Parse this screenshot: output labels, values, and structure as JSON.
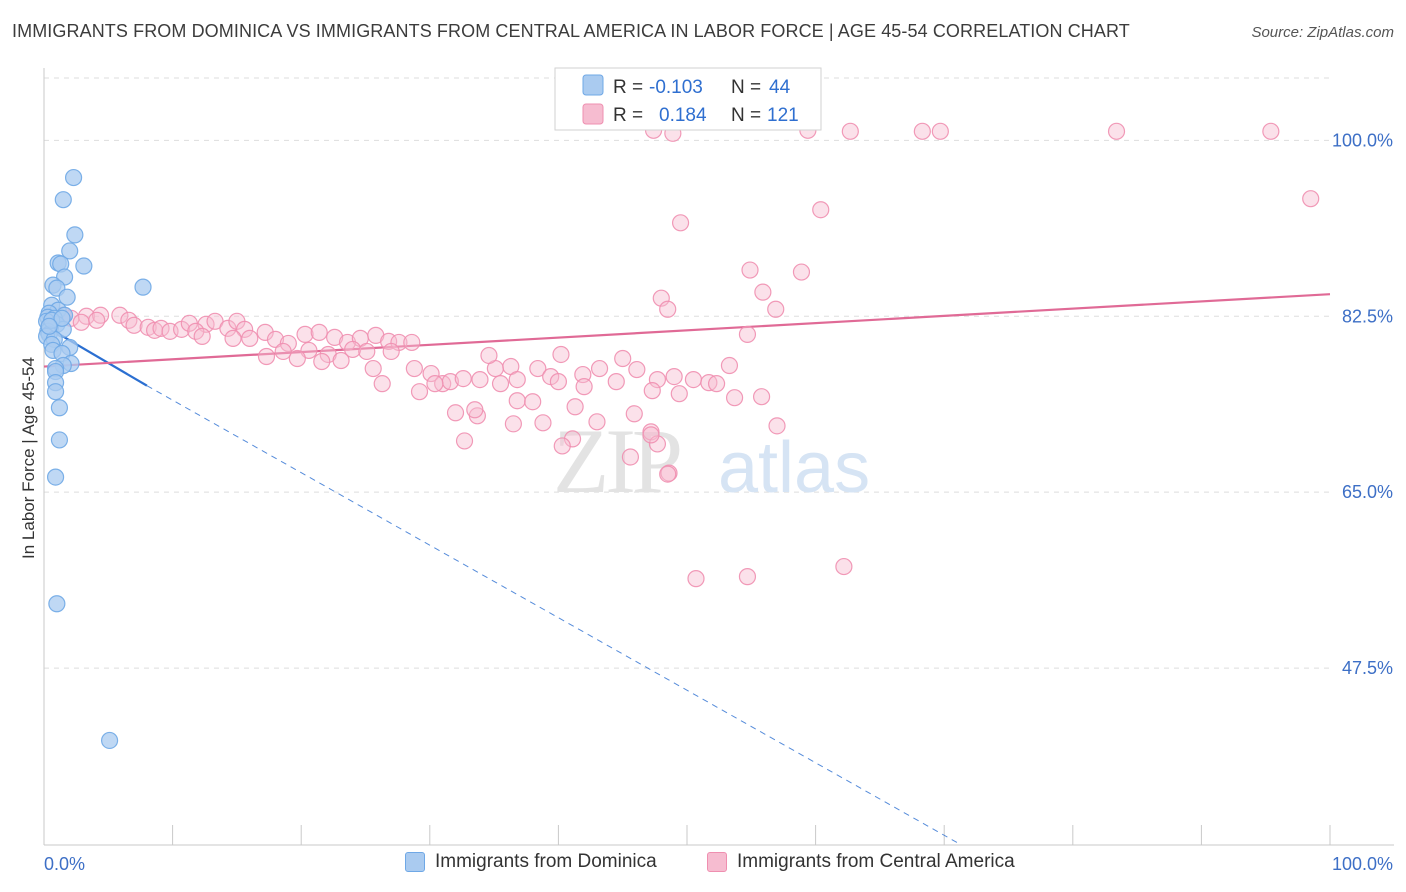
{
  "chart_data": {
    "type": "scatter",
    "title": "IMMIGRANTS FROM DOMINICA VS IMMIGRANTS FROM CENTRAL AMERICA IN LABOR FORCE | AGE 45-54 CORRELATION CHART",
    "source": "Source: ZipAtlas.com",
    "ylabel": "In Labor Force | Age 45-54",
    "xlabel": "",
    "xlim": [
      0,
      100
    ],
    "ylim": [
      29.9,
      107.2
    ],
    "x_tick_labels": [
      "0.0%",
      "100.0%"
    ],
    "y_ticks": [
      {
        "value": 100.0,
        "label": "100.0%"
      },
      {
        "value": 82.5,
        "label": "82.5%"
      },
      {
        "value": 65.0,
        "label": "65.0%"
      },
      {
        "value": 47.5,
        "label": "47.5%"
      }
    ],
    "grid": true,
    "watermark": {
      "part1": "ZIP",
      "part2": "atlas"
    },
    "legend_stats": [
      {
        "r_label": "R =",
        "r_value": "-0.103",
        "n_label": "N =",
        "n_value": "44"
      },
      {
        "r_label": "R =",
        "r_value": "0.184",
        "n_label": "N =",
        "n_value": "121"
      }
    ],
    "series": [
      {
        "name": "Immigrants from Dominica",
        "color": "#6fa8e6",
        "fill": "#aacbf0",
        "line_color": "#2b6fd1",
        "trend": {
          "x0": 0,
          "y0": 81.6,
          "x1": 8,
          "y1": 75.6,
          "dash_to_x": 71.2,
          "dash_to_y": 30.0
        },
        "points": [
          [
            2.3,
            96.3
          ],
          [
            1.5,
            94.1
          ],
          [
            2.4,
            90.6
          ],
          [
            2.0,
            89.0
          ],
          [
            1.1,
            87.8
          ],
          [
            1.3,
            87.7
          ],
          [
            3.1,
            87.5
          ],
          [
            1.6,
            86.4
          ],
          [
            0.7,
            85.6
          ],
          [
            1.0,
            85.3
          ],
          [
            7.7,
            85.4
          ],
          [
            1.8,
            84.4
          ],
          [
            0.6,
            83.6
          ],
          [
            1.1,
            83.1
          ],
          [
            0.4,
            82.8
          ],
          [
            1.6,
            82.6
          ],
          [
            0.3,
            82.4
          ],
          [
            0.8,
            82.3
          ],
          [
            0.2,
            82.0
          ],
          [
            1.0,
            81.7
          ],
          [
            0.5,
            81.4
          ],
          [
            1.5,
            81.2
          ],
          [
            0.3,
            81.0
          ],
          [
            0.4,
            80.7
          ],
          [
            0.2,
            80.5
          ],
          [
            0.8,
            80.2
          ],
          [
            0.6,
            79.7
          ],
          [
            2.0,
            79.4
          ],
          [
            0.7,
            79.1
          ],
          [
            1.4,
            78.8
          ],
          [
            2.1,
            77.8
          ],
          [
            1.5,
            77.6
          ],
          [
            0.9,
            77.3
          ],
          [
            0.9,
            77.0
          ],
          [
            0.9,
            75.9
          ],
          [
            0.9,
            75.0
          ],
          [
            1.2,
            73.4
          ],
          [
            1.2,
            70.2
          ],
          [
            0.9,
            66.5
          ],
          [
            1.0,
            53.9
          ],
          [
            5.1,
            40.3
          ],
          [
            0.6,
            82.1
          ],
          [
            1.4,
            82.3
          ],
          [
            0.4,
            81.5
          ]
        ]
      },
      {
        "name": "Immigrants from Central America",
        "color": "#ef8fb0",
        "fill": "#f6bcd0",
        "line_color": "#e06a96",
        "trend": {
          "x0": 0,
          "y0": 77.5,
          "x1": 100,
          "y1": 84.7
        },
        "points": [
          [
            47.4,
            101.0
          ],
          [
            48.9,
            100.7
          ],
          [
            59.4,
            101.0
          ],
          [
            62.7,
            100.9
          ],
          [
            68.3,
            100.9
          ],
          [
            69.7,
            100.9
          ],
          [
            83.4,
            100.9
          ],
          [
            95.4,
            100.9
          ],
          [
            98.5,
            94.2
          ],
          [
            60.4,
            93.1
          ],
          [
            49.5,
            91.8
          ],
          [
            54.9,
            87.1
          ],
          [
            58.9,
            86.9
          ],
          [
            55.9,
            84.9
          ],
          [
            48.0,
            84.3
          ],
          [
            48.5,
            83.2
          ],
          [
            56.9,
            83.2
          ],
          [
            1.5,
            82.6
          ],
          [
            2.1,
            82.3
          ],
          [
            3.3,
            82.5
          ],
          [
            4.4,
            82.6
          ],
          [
            5.9,
            82.6
          ],
          [
            2.9,
            81.9
          ],
          [
            4.1,
            82.1
          ],
          [
            6.6,
            82.1
          ],
          [
            7.0,
            81.6
          ],
          [
            8.1,
            81.4
          ],
          [
            8.6,
            81.1
          ],
          [
            9.1,
            81.3
          ],
          [
            9.8,
            81.0
          ],
          [
            10.7,
            81.2
          ],
          [
            11.3,
            81.8
          ],
          [
            12.6,
            81.7
          ],
          [
            13.3,
            82.0
          ],
          [
            14.3,
            81.3
          ],
          [
            15.0,
            82.0
          ],
          [
            15.6,
            81.2
          ],
          [
            11.8,
            81.0
          ],
          [
            12.3,
            80.5
          ],
          [
            14.7,
            80.3
          ],
          [
            16.0,
            80.3
          ],
          [
            17.2,
            80.9
          ],
          [
            18.0,
            80.2
          ],
          [
            19.0,
            79.8
          ],
          [
            20.3,
            80.7
          ],
          [
            21.4,
            80.9
          ],
          [
            22.6,
            80.4
          ],
          [
            23.6,
            79.9
          ],
          [
            24.6,
            80.3
          ],
          [
            25.8,
            80.6
          ],
          [
            26.8,
            80.0
          ],
          [
            27.6,
            79.9
          ],
          [
            28.6,
            79.9
          ],
          [
            18.6,
            79.0
          ],
          [
            20.6,
            79.1
          ],
          [
            22.1,
            78.7
          ],
          [
            24.0,
            79.2
          ],
          [
            25.1,
            79.0
          ],
          [
            27.0,
            79.0
          ],
          [
            17.3,
            78.5
          ],
          [
            19.7,
            78.3
          ],
          [
            21.6,
            78.0
          ],
          [
            23.1,
            78.1
          ],
          [
            28.8,
            77.3
          ],
          [
            30.1,
            76.8
          ],
          [
            31.0,
            75.8
          ],
          [
            31.6,
            76.0
          ],
          [
            32.6,
            76.3
          ],
          [
            33.9,
            76.2
          ],
          [
            35.1,
            77.3
          ],
          [
            36.3,
            77.5
          ],
          [
            36.8,
            76.2
          ],
          [
            34.6,
            78.6
          ],
          [
            38.4,
            77.3
          ],
          [
            39.4,
            76.5
          ],
          [
            40.2,
            78.7
          ],
          [
            41.9,
            76.7
          ],
          [
            43.2,
            77.3
          ],
          [
            45.0,
            78.3
          ],
          [
            46.1,
            77.2
          ],
          [
            47.7,
            76.2
          ],
          [
            49.0,
            76.5
          ],
          [
            50.5,
            76.2
          ],
          [
            51.7,
            75.9
          ],
          [
            53.3,
            77.6
          ],
          [
            54.7,
            80.7
          ],
          [
            40.0,
            76.0
          ],
          [
            42.0,
            75.5
          ],
          [
            44.5,
            76.0
          ],
          [
            47.3,
            75.1
          ],
          [
            52.3,
            75.8
          ],
          [
            25.6,
            77.3
          ],
          [
            26.3,
            75.8
          ],
          [
            29.2,
            75.0
          ],
          [
            30.4,
            75.8
          ],
          [
            32.0,
            72.9
          ],
          [
            33.7,
            72.6
          ],
          [
            35.5,
            75.8
          ],
          [
            36.8,
            74.1
          ],
          [
            38.0,
            74.0
          ],
          [
            41.3,
            73.5
          ],
          [
            45.9,
            72.8
          ],
          [
            47.2,
            71.0
          ],
          [
            49.4,
            74.8
          ],
          [
            53.7,
            74.4
          ],
          [
            57.0,
            71.6
          ],
          [
            43.0,
            72.0
          ],
          [
            45.6,
            68.5
          ],
          [
            36.5,
            71.8
          ],
          [
            32.7,
            70.1
          ],
          [
            41.1,
            70.3
          ],
          [
            47.7,
            69.8
          ],
          [
            48.6,
            66.9
          ],
          [
            33.5,
            73.2
          ],
          [
            40.3,
            69.6
          ],
          [
            47.2,
            70.7
          ],
          [
            38.8,
            71.9
          ],
          [
            62.2,
            57.6
          ],
          [
            50.7,
            56.4
          ],
          [
            54.7,
            56.6
          ],
          [
            48.5,
            66.8
          ],
          [
            55.8,
            74.5
          ]
        ]
      }
    ],
    "legend": [
      "Immigrants from Dominica",
      "Immigrants from Central America"
    ]
  }
}
